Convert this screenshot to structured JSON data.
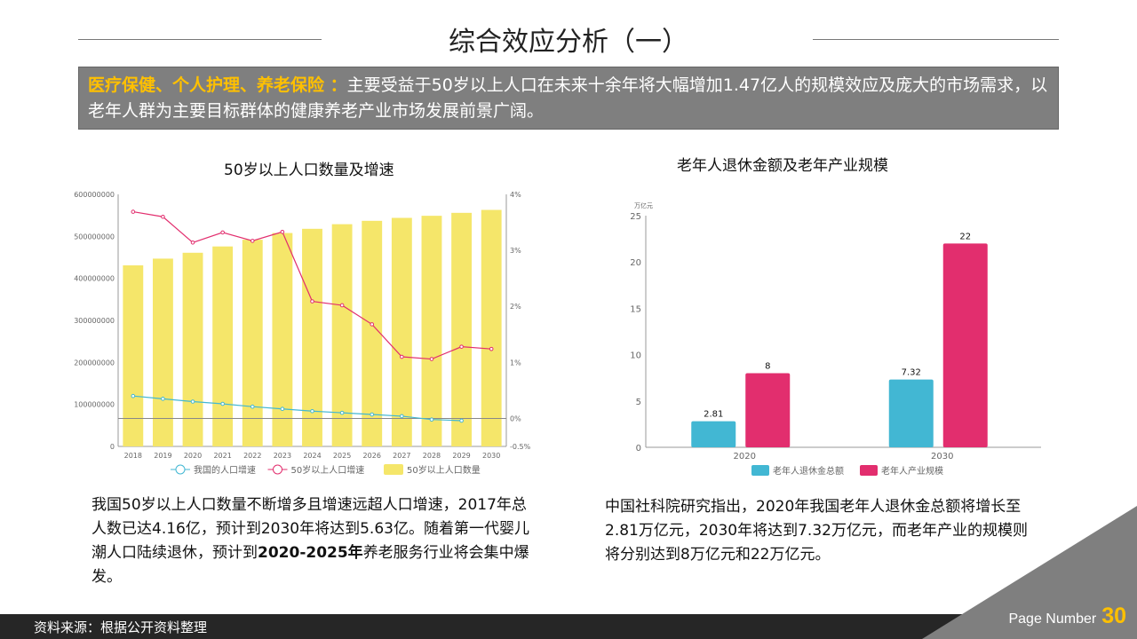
{
  "title": "综合效应分析（一）",
  "banner": {
    "highlight": "医疗保健、个人护理、养老保险 ：",
    "text": "主要受益于50岁以上人口在未来十余年将大幅增加1.47亿人的规模效应及庞大的市场需求，以老年人群为主要目标群体的健康养老产业市场发展前景广阔。"
  },
  "left_text": {
    "part1": "我国50岁以上人口数量不断增多且增速远超人口增速，2017年总人数已达4.16亿，预计到2030年将达到5.63亿。随着第一代婴儿潮人口陆续退休，预计到",
    "bold": "2020-2025年",
    "part2": "养老服务行业将会集中爆发。"
  },
  "right_text": "中国社科院研究指出，2020年我国老年人退休金总额将增长至2.81万亿元，2030年将达到7.32万亿元，而老年产业的规模则将分别达到8万亿元和22万亿元。",
  "footer": {
    "source": "资料来源：根据公开资料整理",
    "page_label": "Page Number",
    "page_number": "30"
  },
  "colors": {
    "yellow": "#f5e66a",
    "pink": "#e22e6e",
    "cyan": "#42b7d3",
    "accent": "#ffc000",
    "banner": "#7f7f7f"
  },
  "chart_data": [
    {
      "type": "bar+line",
      "title": "50岁以上人口数量及增速",
      "categories": [
        "2018",
        "2019",
        "2020",
        "2021",
        "2022",
        "2023",
        "2024",
        "2025",
        "2026",
        "2027",
        "2028",
        "2029",
        "2030"
      ],
      "y_left": {
        "range": [
          0,
          600000000
        ],
        "ticks": [
          "0",
          "100000000",
          "200000000",
          "300000000",
          "400000000",
          "500000000",
          "600000000"
        ]
      },
      "y_right": {
        "range": [
          -0.5,
          4
        ],
        "ticks": [
          "-0.5%",
          "0%",
          "1%",
          "2%",
          "3%",
          "4%"
        ]
      },
      "series": [
        {
          "name": "我国的人口增速",
          "type": "line",
          "axis": "right",
          "color": "#42b7d3",
          "values": [
            0.4,
            0.35,
            0.3,
            0.26,
            0.21,
            0.17,
            0.13,
            0.1,
            0.07,
            0.04,
            -0.02,
            -0.04,
            null
          ]
        },
        {
          "name": "50岁以上人口增速",
          "type": "line",
          "axis": "right",
          "color": "#e22e6e",
          "values": [
            3.69,
            3.6,
            3.14,
            3.32,
            3.17,
            3.33,
            2.09,
            2.02,
            1.68,
            1.1,
            1.06,
            1.28,
            1.24
          ]
        },
        {
          "name": "50岁以上人口数量",
          "type": "bar",
          "axis": "left",
          "color": "#f5e66a",
          "values": [
            431000000,
            447000000,
            461000000,
            476000000,
            492000000,
            508000000,
            518000000,
            529000000,
            537000000,
            544000000,
            549000000,
            556000000,
            563000000
          ]
        }
      ],
      "legend": "bottom"
    },
    {
      "type": "bar",
      "title": "老年人退休金额及老年产业规模",
      "unit": "万亿元",
      "categories": [
        "2020",
        "2030"
      ],
      "ylim": [
        0,
        25
      ],
      "yticks": [
        "0",
        "5",
        "10",
        "15",
        "20",
        "25"
      ],
      "series": [
        {
          "name": "老年人退休金总额",
          "color": "#42b7d3",
          "values": [
            2.81,
            7.32
          ],
          "labels": [
            "2.81",
            "7.32"
          ]
        },
        {
          "name": "老年人产业规模",
          "color": "#e22e6e",
          "values": [
            8,
            22
          ],
          "labels": [
            "8",
            "22"
          ]
        }
      ],
      "legend": "bottom"
    }
  ]
}
